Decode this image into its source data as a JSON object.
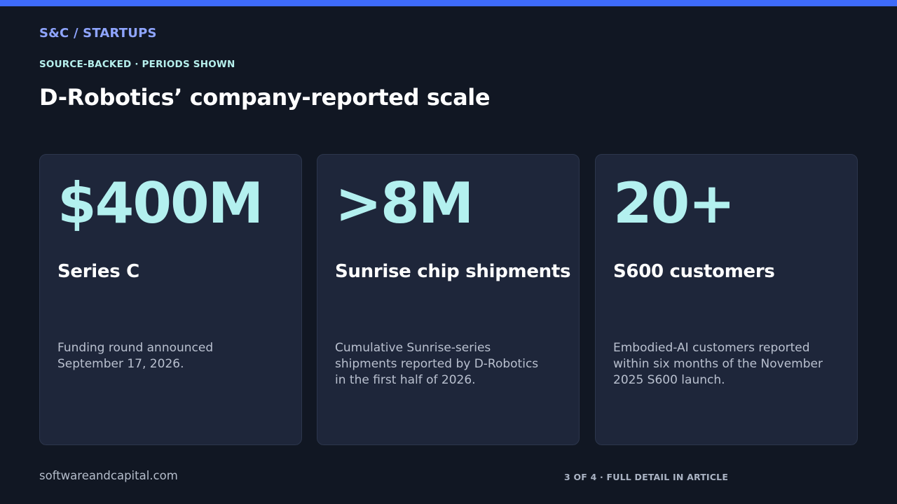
{
  "header": {
    "brand": "S&C / STARTUPS",
    "kicker": "SOURCE-BACKED · PERIODS SHOWN",
    "title": "D-Robotics’ company-reported scale"
  },
  "cards": [
    {
      "metric": "$400M",
      "label": "Series C",
      "description": "Funding round announced September 17, 2026."
    },
    {
      "metric": ">8M",
      "label": "Sunrise chip shipments",
      "description": "Cumulative Sunrise-series shipments reported by D-Robotics in the first half of 2026."
    },
    {
      "metric": "20+",
      "label": "S600 customers",
      "description": "Embodied-AI customers reported within six months of the November 2025 S600 launch."
    }
  ],
  "footer": {
    "site": "softwareandcapital.com",
    "page_note": "3 OF 4 · FULL DETAIL IN ARTICLE"
  },
  "colors": {
    "background": "#111723",
    "accent_bar": "#3e6bfa",
    "brand": "#8fa5ff",
    "metric": "#b3f0ef",
    "card": "#1e263a"
  }
}
